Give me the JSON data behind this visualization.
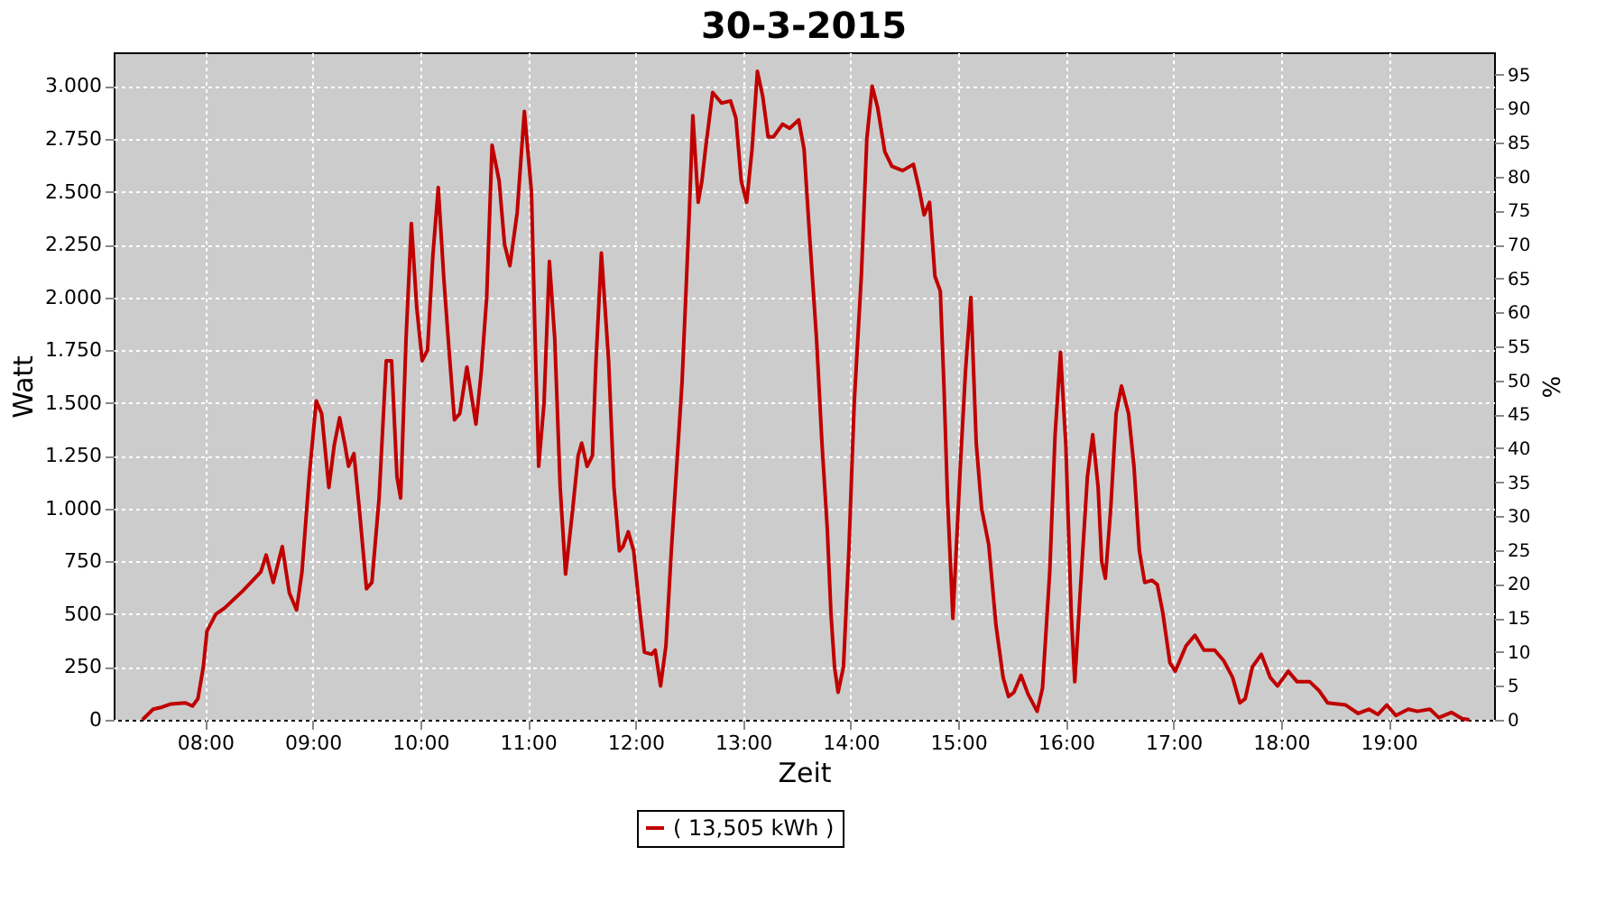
{
  "chart_data": {
    "type": "line",
    "title": "30-3-2015",
    "xlabel": "Zeit",
    "ylabel": "Watt",
    "y2label": "%",
    "xlim": [
      7.15,
      19.98
    ],
    "ylim": [
      0,
      3160
    ],
    "y2lim": [
      0,
      98.3
    ],
    "xticks": [
      {
        "value": 8,
        "label": "08:00"
      },
      {
        "value": 9,
        "label": "09:00"
      },
      {
        "value": 10,
        "label": "10:00"
      },
      {
        "value": 11,
        "label": "11:00"
      },
      {
        "value": 12,
        "label": "12:00"
      },
      {
        "value": 13,
        "label": "13:00"
      },
      {
        "value": 14,
        "label": "14:00"
      },
      {
        "value": 15,
        "label": "15:00"
      },
      {
        "value": 16,
        "label": "16:00"
      },
      {
        "value": 17,
        "label": "17:00"
      },
      {
        "value": 18,
        "label": "18:00"
      },
      {
        "value": 19,
        "label": "19:00"
      }
    ],
    "yticks": [
      0,
      250,
      500,
      750,
      {
        "value": 1000,
        "label": "1.000"
      },
      {
        "value": 1250,
        "label": "1.250"
      },
      {
        "value": 1500,
        "label": "1.500"
      },
      {
        "value": 1750,
        "label": "1.750"
      },
      {
        "value": 2000,
        "label": "2.000"
      },
      {
        "value": 2250,
        "label": "2.250"
      },
      {
        "value": 2500,
        "label": "2.500"
      },
      {
        "value": 2750,
        "label": "2.750"
      },
      {
        "value": 3000,
        "label": "3.000"
      }
    ],
    "y2ticks": [
      0,
      5,
      10,
      15,
      20,
      25,
      30,
      35,
      40,
      45,
      50,
      55,
      60,
      65,
      70,
      75,
      80,
      85,
      90,
      95
    ],
    "grid": true,
    "legend": "bottom",
    "marker": "none",
    "line_style": "solid",
    "series": [
      {
        "name": "( 13,505 kWh )",
        "color": "#c00000",
        "x": [
          7.417,
          7.517,
          7.6,
          7.683,
          7.817,
          7.883,
          7.933,
          7.983,
          8.017,
          8.1,
          8.183,
          8.35,
          8.517,
          8.567,
          8.633,
          8.717,
          8.783,
          8.85,
          8.9,
          8.967,
          9.033,
          9.083,
          9.15,
          9.2,
          9.25,
          9.3,
          9.333,
          9.383,
          9.433,
          9.5,
          9.55,
          9.617,
          9.683,
          9.733,
          9.783,
          9.817,
          9.867,
          9.917,
          9.967,
          10.017,
          10.067,
          10.117,
          10.167,
          10.217,
          10.267,
          10.317,
          10.367,
          10.433,
          10.517,
          10.567,
          10.617,
          10.667,
          10.733,
          10.783,
          10.833,
          10.9,
          10.967,
          11.033,
          11.067,
          11.1,
          11.15,
          11.2,
          11.25,
          11.3,
          11.35,
          11.417,
          11.467,
          11.5,
          11.55,
          11.6,
          11.633,
          11.683,
          11.75,
          11.8,
          11.85,
          11.883,
          11.933,
          11.983,
          12.033,
          12.083,
          12.15,
          12.183,
          12.233,
          12.283,
          12.333,
          12.383,
          12.433,
          12.467,
          12.5,
          12.533,
          12.583,
          12.617,
          12.65,
          12.717,
          12.8,
          12.883,
          12.933,
          12.983,
          13.033,
          13.083,
          13.133,
          13.183,
          13.233,
          13.283,
          13.367,
          13.433,
          13.517,
          13.567,
          13.617,
          13.683,
          13.733,
          13.783,
          13.817,
          13.85,
          13.883,
          13.933,
          13.983,
          14.033,
          14.1,
          14.15,
          14.2,
          14.25,
          14.317,
          14.383,
          14.483,
          14.583,
          14.633,
          14.683,
          14.733,
          14.783,
          14.833,
          14.867,
          14.9,
          14.95,
          15.017,
          15.067,
          15.117,
          15.167,
          15.217,
          15.283,
          15.35,
          15.417,
          15.467,
          15.517,
          15.583,
          15.65,
          15.733,
          15.783,
          15.85,
          15.9,
          15.95,
          16.0,
          16.05,
          16.083,
          16.133,
          16.2,
          16.25,
          16.3,
          16.333,
          16.367,
          16.417,
          16.467,
          16.517,
          16.583,
          16.633,
          16.683,
          16.733,
          16.8,
          16.85,
          16.9,
          16.967,
          17.017,
          17.117,
          17.2,
          17.283,
          17.383,
          17.467,
          17.55,
          17.617,
          17.667,
          17.733,
          17.817,
          17.9,
          17.967,
          18.067,
          18.15,
          18.267,
          18.35,
          18.433,
          18.6,
          18.717,
          18.817,
          18.9,
          18.983,
          19.067,
          19.183,
          19.267,
          19.383,
          19.467,
          19.583,
          19.683,
          19.75
        ],
        "values": [
          0,
          50,
          60,
          75,
          80,
          65,
          100,
          250,
          420,
          500,
          530,
          610,
          700,
          780,
          650,
          820,
          600,
          520,
          700,
          1150,
          1510,
          1450,
          1100,
          1300,
          1430,
          1300,
          1200,
          1260,
          1000,
          620,
          650,
          1050,
          1700,
          1700,
          1150,
          1050,
          1800,
          2350,
          1950,
          1700,
          1750,
          2200,
          2520,
          2100,
          1750,
          1420,
          1450,
          1670,
          1400,
          1650,
          2000,
          2720,
          2550,
          2250,
          2150,
          2400,
          2880,
          2500,
          1800,
          1200,
          1500,
          2170,
          1800,
          1100,
          690,
          1000,
          1250,
          1310,
          1200,
          1250,
          1700,
          2210,
          1700,
          1100,
          800,
          820,
          890,
          800,
          550,
          320,
          310,
          330,
          160,
          350,
          800,
          1200,
          1600,
          2000,
          2400,
          2860,
          2450,
          2550,
          2700,
          2970,
          2920,
          2930,
          2850,
          2550,
          2450,
          2700,
          3070,
          2950,
          2760,
          2760,
          2820,
          2800,
          2840,
          2700,
          2300,
          1800,
          1310,
          900,
          500,
          250,
          130,
          250,
          800,
          1500,
          2110,
          2750,
          3000,
          2900,
          2690,
          2620,
          2600,
          2630,
          2520,
          2390,
          2450,
          2100,
          2030,
          1580,
          1050,
          480,
          1180,
          1650,
          2000,
          1310,
          1000,
          830,
          450,
          200,
          110,
          130,
          210,
          120,
          40,
          150,
          700,
          1350,
          1740,
          1300,
          500,
          180,
          600,
          1150,
          1350,
          1100,
          750,
          670,
          1000,
          1450,
          1580,
          1450,
          1200,
          800,
          650,
          660,
          640,
          510,
          270,
          230,
          350,
          400,
          330,
          330,
          280,
          200,
          80,
          100,
          250,
          310,
          200,
          160,
          230,
          180,
          180,
          140,
          80,
          70,
          30,
          50,
          25,
          70,
          20,
          50,
          40,
          50,
          10,
          35,
          5,
          0
        ]
      }
    ]
  }
}
